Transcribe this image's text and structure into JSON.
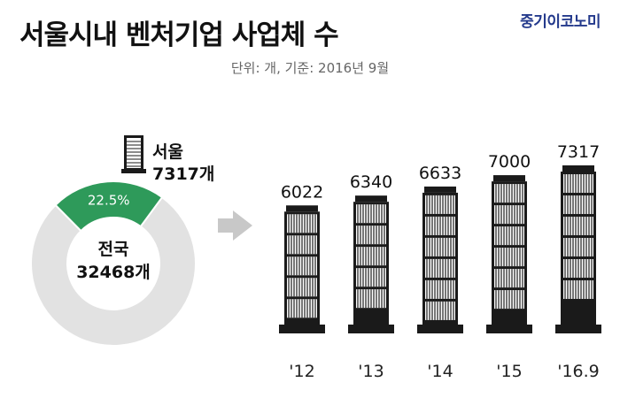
{
  "header": {
    "title": "서울시내 벤처기업 사업체 수",
    "brand": "중기이코노미",
    "subtitle": "단위: 개, 기준: 2016년 9월"
  },
  "donut": {
    "seoul_label": "서울",
    "seoul_count_label": "7317개",
    "seoul_percent_label": "22.5%",
    "seoul_share": 0.225,
    "national_label": "전국",
    "national_count_label": "32468개",
    "colors": {
      "seoul": "#2e9a5a",
      "rest": "#e2e2e2"
    }
  },
  "chart_data": {
    "type": "bar",
    "categories": [
      "'12",
      "'13",
      "'14",
      "'15",
      "'16.9"
    ],
    "values": [
      6022,
      6340,
      6633,
      7000,
      7317
    ],
    "title": "서울시내 벤처기업 사업체 수",
    "xlabel": "",
    "ylabel": "",
    "unit": "개",
    "grid": false,
    "legend": "none"
  },
  "colors": {
    "bar": "#1a1a1a",
    "arrow": "#c8c8c8"
  }
}
